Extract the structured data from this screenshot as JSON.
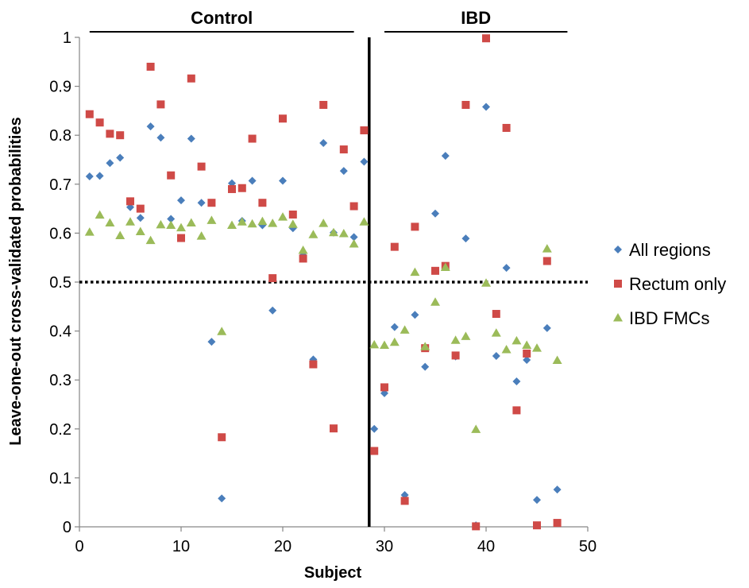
{
  "chart_data": {
    "type": "scatter",
    "xlabel": "Subject",
    "ylabel": "Leave-one-out cross-validated probabilities",
    "xlim": [
      0,
      50
    ],
    "ylim": [
      0,
      1
    ],
    "x_ticks": [
      "0",
      "10",
      "20",
      "30",
      "40",
      "50"
    ],
    "y_ticks": [
      "0",
      "0.1",
      "0.2",
      "0.3",
      "0.4",
      "0.5",
      "0.6",
      "0.7",
      "0.8",
      "0.9",
      "1"
    ],
    "legend_position": "right",
    "groups": [
      {
        "label": "Control",
        "from": 1,
        "to": 27
      },
      {
        "label": "IBD",
        "from": 30,
        "to": 48
      }
    ],
    "divider_x": 28.5,
    "threshold_y": 0.5,
    "series": [
      {
        "name": "All regions",
        "marker": "diamond",
        "color": "#4a7ebb",
        "points": [
          [
            1,
            0.716
          ],
          [
            2,
            0.717
          ],
          [
            3,
            0.743
          ],
          [
            4,
            0.754
          ],
          [
            5,
            0.653
          ],
          [
            6,
            0.631
          ],
          [
            7,
            0.818
          ],
          [
            8,
            0.795
          ],
          [
            9,
            0.629
          ],
          [
            10,
            0.667
          ],
          [
            11,
            0.793
          ],
          [
            12,
            0.662
          ],
          [
            13,
            0.378
          ],
          [
            14,
            0.058
          ],
          [
            15,
            0.702
          ],
          [
            16,
            0.625
          ],
          [
            17,
            0.707
          ],
          [
            18,
            0.616
          ],
          [
            19,
            0.442
          ],
          [
            20,
            0.707
          ],
          [
            21,
            0.61
          ],
          [
            22,
            0.555
          ],
          [
            23,
            0.342
          ],
          [
            24,
            0.784
          ],
          [
            25,
            0.601
          ],
          [
            26,
            0.727
          ],
          [
            27,
            0.592
          ],
          [
            28,
            0.746
          ],
          [
            29,
            0.2
          ],
          [
            30,
            0.273
          ],
          [
            31,
            0.408
          ],
          [
            32,
            0.065
          ],
          [
            33,
            0.433
          ],
          [
            34,
            0.327
          ],
          [
            35,
            0.64
          ],
          [
            36,
            0.758
          ],
          [
            37,
            0.348
          ],
          [
            38,
            0.589
          ],
          [
            39,
            0.003
          ],
          [
            40,
            0.858
          ],
          [
            41,
            0.349
          ],
          [
            42,
            0.529
          ],
          [
            43,
            0.297
          ],
          [
            44,
            0.341
          ],
          [
            45,
            0.055
          ],
          [
            46,
            0.406
          ],
          [
            47,
            0.076
          ]
        ]
      },
      {
        "name": "Rectum only",
        "marker": "square",
        "color": "#cf4a47",
        "points": [
          [
            1,
            0.843
          ],
          [
            2,
            0.826
          ],
          [
            3,
            0.803
          ],
          [
            4,
            0.8
          ],
          [
            5,
            0.665
          ],
          [
            6,
            0.65
          ],
          [
            7,
            0.94
          ],
          [
            8,
            0.863
          ],
          [
            9,
            0.718
          ],
          [
            10,
            0.59
          ],
          [
            11,
            0.916
          ],
          [
            12,
            0.736
          ],
          [
            13,
            0.662
          ],
          [
            14,
            0.183
          ],
          [
            15,
            0.69
          ],
          [
            16,
            0.692
          ],
          [
            17,
            0.793
          ],
          [
            18,
            0.662
          ],
          [
            19,
            0.508
          ],
          [
            20,
            0.834
          ],
          [
            21,
            0.638
          ],
          [
            22,
            0.548
          ],
          [
            23,
            0.332
          ],
          [
            24,
            0.862
          ],
          [
            25,
            0.201
          ],
          [
            26,
            0.771
          ],
          [
            27,
            0.655
          ],
          [
            28,
            0.81
          ],
          [
            29,
            0.155
          ],
          [
            30,
            0.285
          ],
          [
            31,
            0.572
          ],
          [
            32,
            0.053
          ],
          [
            33,
            0.613
          ],
          [
            34,
            0.365
          ],
          [
            35,
            0.523
          ],
          [
            36,
            0.533
          ],
          [
            37,
            0.35
          ],
          [
            38,
            0.862
          ],
          [
            39,
            0.001
          ],
          [
            40,
            0.998
          ],
          [
            41,
            0.435
          ],
          [
            42,
            0.815
          ],
          [
            43,
            0.238
          ],
          [
            44,
            0.354
          ],
          [
            45,
            0.003
          ],
          [
            46,
            0.543
          ],
          [
            47,
            0.008
          ]
        ]
      },
      {
        "name": "IBD FMCs",
        "marker": "triangle",
        "color": "#9bbb59",
        "points": [
          [
            1,
            0.602
          ],
          [
            2,
            0.637
          ],
          [
            3,
            0.621
          ],
          [
            4,
            0.595
          ],
          [
            5,
            0.623
          ],
          [
            6,
            0.603
          ],
          [
            7,
            0.585
          ],
          [
            8,
            0.617
          ],
          [
            9,
            0.616
          ],
          [
            10,
            0.611
          ],
          [
            11,
            0.621
          ],
          [
            12,
            0.594
          ],
          [
            13,
            0.626
          ],
          [
            14,
            0.399
          ],
          [
            15,
            0.616
          ],
          [
            16,
            0.623
          ],
          [
            17,
            0.619
          ],
          [
            18,
            0.624
          ],
          [
            19,
            0.62
          ],
          [
            20,
            0.633
          ],
          [
            21,
            0.618
          ],
          [
            22,
            0.565
          ],
          [
            23,
            0.597
          ],
          [
            24,
            0.62
          ],
          [
            25,
            0.601
          ],
          [
            26,
            0.599
          ],
          [
            27,
            0.578
          ],
          [
            28,
            0.623
          ],
          [
            29,
            0.372
          ],
          [
            30,
            0.371
          ],
          [
            31,
            0.377
          ],
          [
            32,
            0.402
          ],
          [
            33,
            0.52
          ],
          [
            34,
            0.368
          ],
          [
            35,
            0.459
          ],
          [
            36,
            0.53
          ],
          [
            37,
            0.381
          ],
          [
            38,
            0.389
          ],
          [
            39,
            0.199
          ],
          [
            40,
            0.498
          ],
          [
            41,
            0.396
          ],
          [
            42,
            0.362
          ],
          [
            43,
            0.38
          ],
          [
            44,
            0.371
          ],
          [
            45,
            0.365
          ],
          [
            46,
            0.568
          ],
          [
            47,
            0.34
          ]
        ]
      }
    ]
  }
}
